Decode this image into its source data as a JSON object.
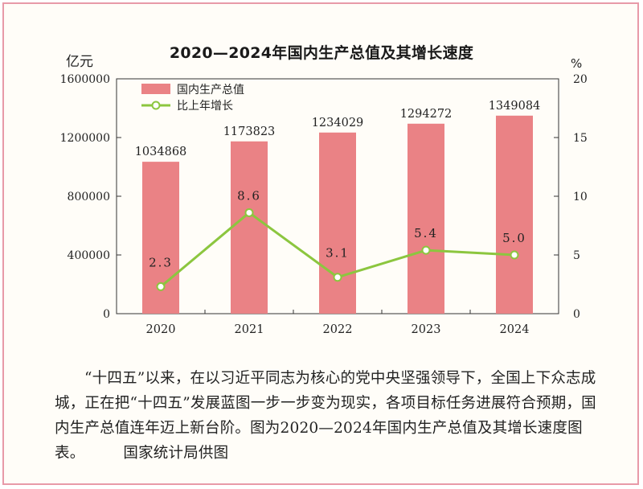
{
  "chart_data": {
    "type": "bar",
    "title": "2020—2024年国内生产总值及其增长速度",
    "categories": [
      "2020",
      "2021",
      "2022",
      "2023",
      "2024"
    ],
    "series": [
      {
        "name": "国内生产总值",
        "type": "bar",
        "axis": "left",
        "color": "#ea8285",
        "values": [
          1034868,
          1173823,
          1234029,
          1294272,
          1349084
        ]
      },
      {
        "name": "比上年增长",
        "type": "line",
        "axis": "right",
        "color": "#8cc63f",
        "values": [
          2.3,
          8.6,
          3.1,
          5.4,
          5.0
        ],
        "labels": [
          "2.3",
          "8.6",
          "3.1",
          "5.4",
          "5.0"
        ]
      }
    ],
    "y_left": {
      "unit": "亿元",
      "ticks": [
        "1600000",
        "1200000",
        "800000",
        "400000",
        "0"
      ],
      "range": [
        0,
        1600000
      ]
    },
    "y_right": {
      "unit": "%",
      "ticks": [
        "20",
        "15",
        "10",
        "5",
        "0"
      ],
      "range": [
        0,
        20
      ]
    },
    "legend_position": "top-left",
    "grid": false
  },
  "caption": {
    "text": "“十四五”以来，在以习近平同志为核心的党中央坚强领导下，全国上下众志成城，正在把“十四五”发展蓝图一步一步变为现实，各项目标任务进展符合预期，国内生产总值连年迈上新台阶。图为2020—2024年国内生产总值及其增长速度图表。",
    "credit": "国家统计局供图"
  }
}
